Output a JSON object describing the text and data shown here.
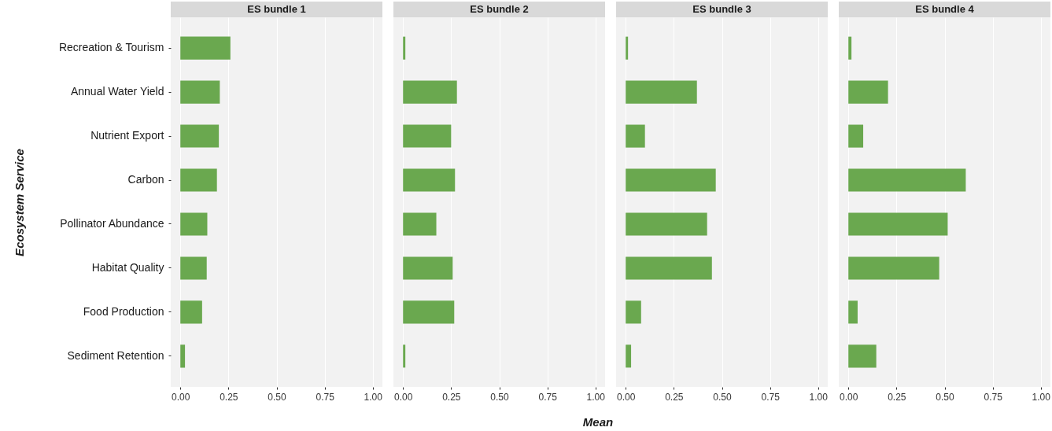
{
  "chart_data": [
    {
      "type": "bar",
      "orientation": "horizontal",
      "title": "ES bundle 1",
      "ylabel": "Ecosystem Service",
      "categories": [
        "Recreation & Tourism",
        "Annual Water Yield",
        "Nutrient Export",
        "Carbon",
        "Pollinator Abundance",
        "Habitat Quality",
        "Food Production",
        "Sediment Retention"
      ],
      "values": [
        0.26,
        0.205,
        0.2,
        0.19,
        0.14,
        0.137,
        0.113,
        0.024
      ],
      "color": "#6aa84f",
      "xlim": [
        -0.05,
        1.05
      ],
      "xticks": [
        {
          "value": 0,
          "label": "0.00"
        },
        {
          "value": 0.25,
          "label": "0.25"
        },
        {
          "value": 0.5,
          "label": "0.50"
        },
        {
          "value": 0.75,
          "label": "0.75"
        },
        {
          "value": 1,
          "label": "1.00"
        }
      ],
      "grid": "x"
    },
    {
      "type": "bar",
      "orientation": "horizontal",
      "title": "ES bundle 2",
      "xlabel": "Mean",
      "categories": [
        null,
        null,
        null,
        null,
        null,
        null,
        null,
        null
      ],
      "values": [
        0.012,
        0.28,
        0.25,
        0.27,
        0.173,
        0.258,
        0.266,
        0.012
      ],
      "color": "#6aa84f",
      "xlim": [
        -0.05,
        1.05
      ],
      "xticks": [
        {
          "value": 0,
          "label": "0.00"
        },
        {
          "value": 0.25,
          "label": "0.25"
        },
        {
          "value": 0.5,
          "label": "0.50"
        },
        {
          "value": 0.75,
          "label": "0.75"
        },
        {
          "value": 1,
          "label": "1.00"
        }
      ],
      "grid": "x",
      "tick_labels": "x"
    },
    {
      "type": "bar",
      "orientation": "horizontal",
      "title": "ES bundle 3",
      "categories": [
        null,
        null,
        null,
        null,
        null,
        null,
        null,
        null
      ],
      "values": [
        0.012,
        0.37,
        0.1,
        0.468,
        0.423,
        0.448,
        0.08,
        0.028
      ],
      "color": "#6aa84f",
      "xlim": [
        -0.05,
        1.05
      ],
      "xticks": [
        {
          "value": 0,
          "label": "0.00"
        },
        {
          "value": 0.25,
          "label": "0.25"
        },
        {
          "value": 0.5,
          "label": "0.50"
        },
        {
          "value": 0.75,
          "label": "0.75"
        },
        {
          "value": 1,
          "label": "1.00"
        }
      ],
      "grid": "x",
      "tick_labels": "x"
    },
    {
      "type": "bar",
      "orientation": "horizontal",
      "title": "ES bundle 4",
      "categories": [
        null,
        null,
        null,
        null,
        null,
        null,
        null,
        null
      ],
      "values": [
        0.016,
        0.206,
        0.077,
        0.61,
        0.516,
        0.472,
        0.048,
        0.145
      ],
      "color": "#6aa84f",
      "xlim": [
        -0.05,
        1.05
      ],
      "xticks": [
        {
          "value": 0,
          "label": "0.00"
        },
        {
          "value": 0.25,
          "label": "0.25"
        },
        {
          "value": 0.5,
          "label": "0.50"
        },
        {
          "value": 0.75,
          "label": "0.75"
        },
        {
          "value": 1,
          "label": "1.00"
        }
      ],
      "grid": "x",
      "tick_labels": "x"
    }
  ]
}
